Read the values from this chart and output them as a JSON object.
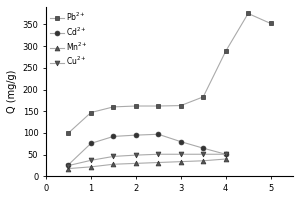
{
  "title": "",
  "xlabel": "",
  "ylabel": "Q (mg/g)",
  "xlim": [
    0,
    5.5
  ],
  "ylim": [
    0,
    390
  ],
  "yticks": [
    0,
    50,
    100,
    150,
    200,
    250,
    300,
    350
  ],
  "xticks": [
    0,
    1,
    2,
    3,
    4,
    5
  ],
  "series": [
    {
      "label": "Pb$^{2+}$",
      "x": [
        0.5,
        1.0,
        1.5,
        2.0,
        2.5,
        3.0,
        3.5,
        4.0,
        4.5,
        5.0
      ],
      "y": [
        100,
        147,
        160,
        162,
        162,
        163,
        183,
        288,
        375,
        352
      ],
      "marker": "s",
      "color": "#aaaaaa",
      "mfc": "#555555",
      "mec": "#333333",
      "linewidth": 0.8,
      "markersize": 3.5
    },
    {
      "label": "Cd$^{2+}$",
      "x": [
        0.5,
        1.0,
        1.5,
        2.0,
        2.5,
        3.0,
        3.5,
        4.0
      ],
      "y": [
        27,
        76,
        92,
        95,
        97,
        80,
        65,
        51
      ],
      "marker": "o",
      "color": "#aaaaaa",
      "mfc": "#333333",
      "mec": "#333333",
      "linewidth": 0.8,
      "markersize": 3.5
    },
    {
      "label": "Mn$^{2+}$",
      "x": [
        0.5,
        1.0,
        1.5,
        2.0,
        2.5,
        3.0,
        3.5,
        4.0
      ],
      "y": [
        18,
        22,
        28,
        30,
        32,
        34,
        36,
        40
      ],
      "marker": "^",
      "color": "#aaaaaa",
      "mfc": "#555555",
      "mec": "#333333",
      "linewidth": 0.8,
      "markersize": 3.5
    },
    {
      "label": "Cu$^{2+}$",
      "x": [
        0.5,
        1.0,
        1.5,
        2.0,
        2.5,
        3.0,
        3.5,
        4.0
      ],
      "y": [
        25,
        37,
        46,
        49,
        51,
        51,
        51,
        51
      ],
      "marker": "v",
      "color": "#aaaaaa",
      "mfc": "#555555",
      "mec": "#333333",
      "linewidth": 0.8,
      "markersize": 3.5
    }
  ],
  "legend_fontsize": 5.5,
  "axis_fontsize": 7,
  "tick_fontsize": 6,
  "background_color": "#ffffff"
}
